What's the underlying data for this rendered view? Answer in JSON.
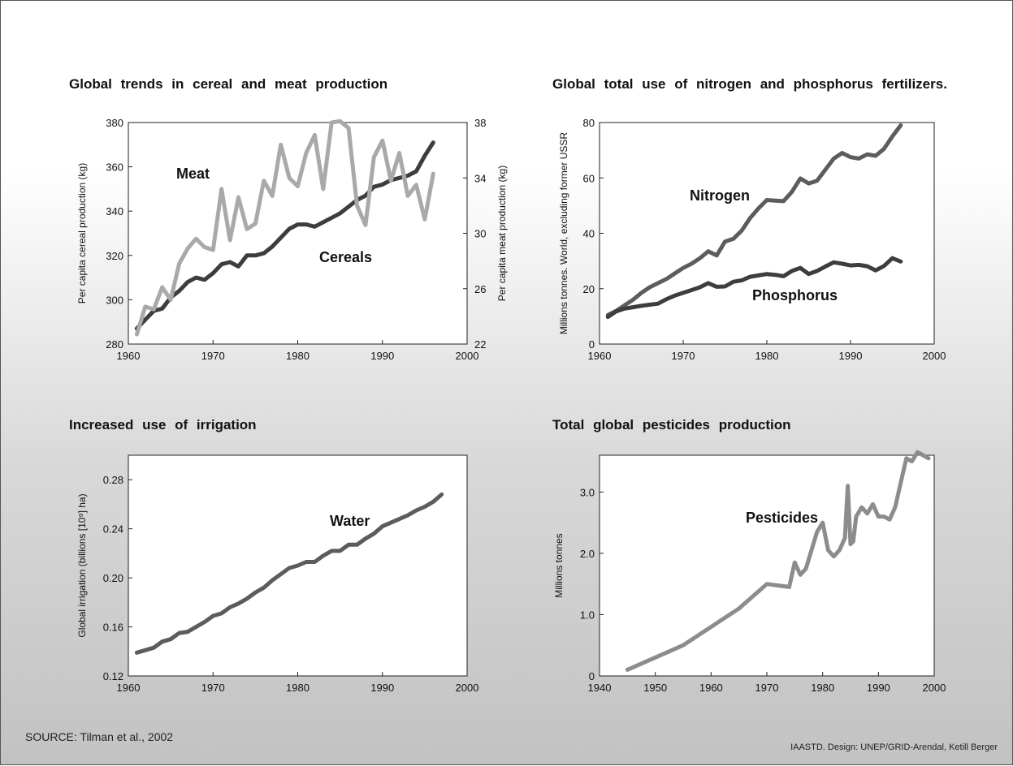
{
  "chart_data": [
    {
      "type": "line",
      "title": "Global trends in cereal and meat production",
      "xlabel": "",
      "ylabel": "Per capita cereal production (kg)",
      "y2label": "Per capita meat production (kg)",
      "xlim": [
        1960,
        2000
      ],
      "ylim": [
        280,
        380
      ],
      "y2lim": [
        22,
        38
      ],
      "xticks": [
        "1960",
        "1970",
        "1980",
        "1990",
        "2000"
      ],
      "yticks": [
        "280",
        "300",
        "320",
        "340",
        "360",
        "380"
      ],
      "y2ticks": [
        "22",
        "26",
        "30",
        "34",
        "38"
      ],
      "series": [
        {
          "name": "Cereals",
          "axis": "left",
          "color": "#3d3d3d",
          "x": [
            1961,
            1962,
            1963,
            1964,
            1965,
            1966,
            1967,
            1968,
            1969,
            1970,
            1971,
            1972,
            1973,
            1974,
            1975,
            1976,
            1977,
            1978,
            1979,
            1980,
            1981,
            1982,
            1983,
            1984,
            1985,
            1986,
            1987,
            1988,
            1989,
            1990,
            1991,
            1992,
            1993,
            1994,
            1995,
            1996
          ],
          "y": [
            287,
            291,
            295,
            296,
            301,
            304,
            308,
            310,
            309,
            312,
            316,
            317,
            315,
            320,
            320,
            321,
            324,
            328,
            332,
            334,
            334,
            333,
            335,
            337,
            339,
            342,
            345,
            347,
            351,
            352,
            354,
            355,
            356,
            358,
            365,
            371
          ]
        },
        {
          "name": "Meat",
          "axis": "right",
          "color": "#a9a9a9",
          "x": [
            1961,
            1962,
            1963,
            1964,
            1965,
            1966,
            1967,
            1968,
            1969,
            1970,
            1971,
            1972,
            1973,
            1974,
            1975,
            1976,
            1977,
            1978,
            1979,
            1980,
            1981,
            1982,
            1983,
            1984,
            1985,
            1986,
            1987,
            1988,
            1989,
            1990,
            1991,
            1992,
            1993,
            1994,
            1995,
            1996
          ],
          "y": [
            22.7,
            24.7,
            24.5,
            26.1,
            25.2,
            27.8,
            28.9,
            29.6,
            29.0,
            28.8,
            33.2,
            29.5,
            32.6,
            30.3,
            30.7,
            33.8,
            32.7,
            36.4,
            34.0,
            33.4,
            35.8,
            37.1,
            33.2,
            38.0,
            38.1,
            37.6,
            32.0,
            30.6,
            35.5,
            36.7,
            33.8,
            35.8,
            32.7,
            33.5,
            31.0,
            34.3
          ]
        }
      ]
    },
    {
      "type": "line",
      "title": "Global total use of nitrogen and phosphorus fertilizers.",
      "xlabel": "",
      "ylabel": "Millions tonnes. World, excluding former USSR",
      "xlim": [
        1960,
        2000
      ],
      "ylim": [
        0,
        80
      ],
      "xticks": [
        "1960",
        "1970",
        "1980",
        "1990",
        "2000"
      ],
      "yticks": [
        "0",
        "20",
        "40",
        "60",
        "80"
      ],
      "series": [
        {
          "name": "Nitrogen",
          "color": "#5c5c5c",
          "x": [
            1961,
            1962,
            1963,
            1964,
            1965,
            1966,
            1967,
            1968,
            1969,
            1970,
            1971,
            1972,
            1973,
            1974,
            1975,
            1976,
            1977,
            1978,
            1979,
            1980,
            1981,
            1982,
            1983,
            1984,
            1985,
            1986,
            1987,
            1988,
            1989,
            1990,
            1991,
            1992,
            1993,
            1994,
            1995,
            1996
          ],
          "y": [
            10.5,
            12,
            14,
            16,
            18.5,
            20.5,
            22,
            23.5,
            25.5,
            27.5,
            29,
            31,
            33.5,
            32,
            37,
            38,
            41,
            45.5,
            49,
            52,
            51.8,
            51.6,
            55,
            59.8,
            58,
            59,
            63,
            67,
            69,
            67.5,
            67,
            68.5,
            68,
            70.5,
            75,
            79
          ]
        },
        {
          "name": "Phosphorus",
          "color": "#3d3d3d",
          "x": [
            1961,
            1962,
            1963,
            1964,
            1965,
            1966,
            1967,
            1968,
            1969,
            1970,
            1971,
            1972,
            1973,
            1974,
            1975,
            1976,
            1977,
            1978,
            1979,
            1980,
            1981,
            1982,
            1983,
            1984,
            1985,
            1986,
            1987,
            1988,
            1989,
            1990,
            1991,
            1992,
            1993,
            1994,
            1995,
            1996
          ],
          "y": [
            9.8,
            11.8,
            12.8,
            13.3,
            13.8,
            14.2,
            14.6,
            16.2,
            17.5,
            18.5,
            19.5,
            20.5,
            22,
            20.7,
            20.8,
            22.5,
            23,
            24.3,
            24.8,
            25.3,
            25,
            24.5,
            26.4,
            27.5,
            25.3,
            26.4,
            28,
            29.5,
            29,
            28.4,
            28.6,
            28.1,
            26.6,
            28.2,
            31,
            29.8
          ]
        }
      ]
    },
    {
      "type": "line",
      "title": "Increased use of irrigation",
      "xlabel": "",
      "ylabel": "Global irrigation (billions [10⁹] ha)",
      "xlim": [
        1960,
        2000
      ],
      "ylim": [
        0.12,
        0.3
      ],
      "xticks": [
        "1960",
        "1970",
        "1980",
        "1990",
        "2000"
      ],
      "yticks": [
        "0.12",
        "0.16",
        "0.20",
        "0.24",
        "0.28"
      ],
      "series": [
        {
          "name": "Water",
          "color": "#5c5c5c",
          "x": [
            1961,
            1962,
            1963,
            1964,
            1965,
            1966,
            1967,
            1968,
            1969,
            1970,
            1971,
            1972,
            1973,
            1974,
            1975,
            1976,
            1977,
            1978,
            1979,
            1980,
            1981,
            1982,
            1983,
            1984,
            1985,
            1986,
            1987,
            1988,
            1989,
            1990,
            1991,
            1992,
            1993,
            1994,
            1995,
            1996,
            1997
          ],
          "y": [
            0.139,
            0.141,
            0.143,
            0.148,
            0.15,
            0.155,
            0.156,
            0.16,
            0.164,
            0.169,
            0.171,
            0.176,
            0.179,
            0.183,
            0.188,
            0.192,
            0.198,
            0.203,
            0.208,
            0.21,
            0.213,
            0.213,
            0.218,
            0.222,
            0.222,
            0.227,
            0.227,
            0.232,
            0.236,
            0.242,
            0.245,
            0.248,
            0.251,
            0.255,
            0.258,
            0.262,
            0.268
          ]
        }
      ]
    },
    {
      "type": "line",
      "title": "Total global pesticides production",
      "xlabel": "",
      "ylabel": "Millions tonnes",
      "xlim": [
        1940,
        2000
      ],
      "ylim": [
        0,
        3.6
      ],
      "xticks": [
        "1940",
        "1950",
        "1960",
        "1970",
        "1980",
        "1990",
        "2000"
      ],
      "yticks": [
        "0",
        "1.0",
        "2.0",
        "3.0"
      ],
      "series": [
        {
          "name": "Pesticides",
          "color": "#8c8c8c",
          "x": [
            1945,
            1955,
            1965,
            1970,
            1974,
            1975,
            1976,
            1977,
            1978,
            1979,
            1980,
            1981,
            1982,
            1983,
            1984,
            1984.5,
            1985,
            1985.5,
            1986,
            1987,
            1988,
            1989,
            1990,
            1991,
            1992,
            1993,
            1994,
            1995,
            1996,
            1997,
            1998,
            1999
          ],
          "y": [
            0.1,
            0.5,
            1.1,
            1.5,
            1.45,
            1.85,
            1.65,
            1.75,
            2.05,
            2.35,
            2.5,
            2.05,
            1.95,
            2.05,
            2.25,
            3.1,
            2.15,
            2.2,
            2.6,
            2.75,
            2.65,
            2.8,
            2.6,
            2.6,
            2.55,
            2.75,
            3.15,
            3.55,
            3.5,
            3.65,
            3.6,
            3.55
          ]
        }
      ]
    }
  ],
  "footer": {
    "source": "SOURCE: Tilman et al., 2002",
    "credit": "IAASTD. Design: UNEP/GRID-Arendal, Ketill Berger"
  }
}
